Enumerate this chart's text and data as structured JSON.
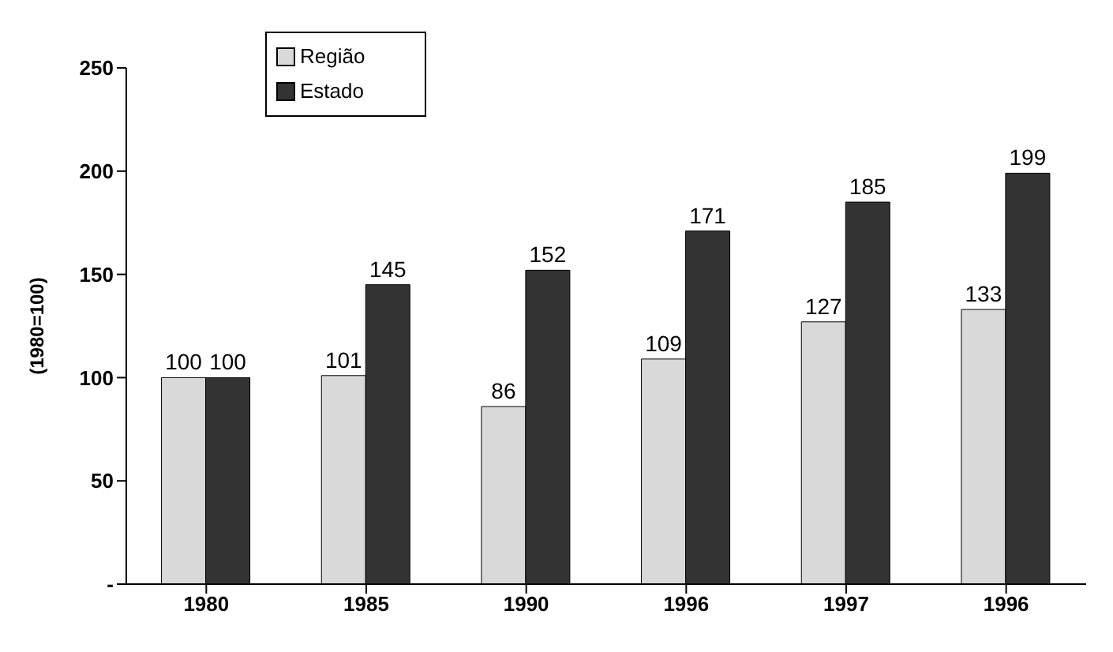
{
  "chart_data": {
    "type": "bar",
    "ylabel": "(1980=100)",
    "categories": [
      "1980",
      "1985",
      "1990",
      "1996",
      "1997",
      "1996"
    ],
    "series": [
      {
        "name": "Região",
        "color": "#d9d9d9",
        "values": [
          100,
          101,
          86,
          109,
          127,
          133
        ]
      },
      {
        "name": "Estado",
        "color": "#333333",
        "values": [
          100,
          145,
          152,
          171,
          185,
          199
        ]
      }
    ],
    "ylim": [
      0,
      250
    ],
    "yticks": [
      {
        "value": 0,
        "label": "-"
      },
      50,
      100,
      150,
      200,
      250
    ],
    "grid": false,
    "legend": "top left",
    "data_labels": true
  }
}
